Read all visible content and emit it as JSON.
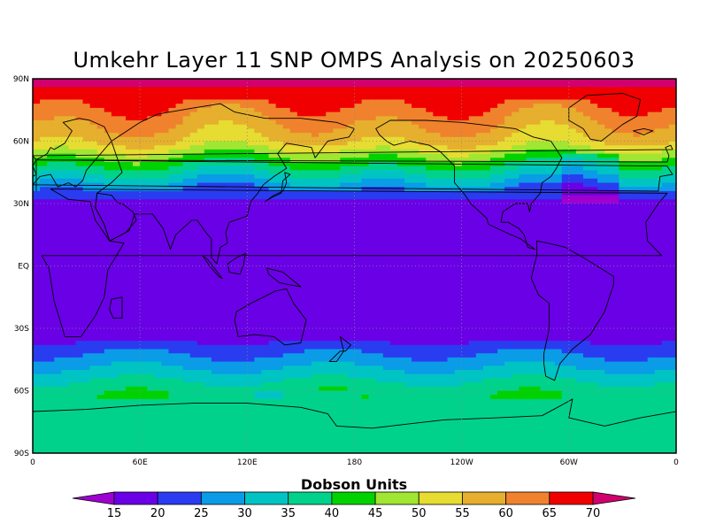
{
  "title": "Umkehr Layer 11 SNP OMPS Analysis on 20250603",
  "map": {
    "projection": "cylindrical equidistant",
    "lat_labels": [
      "90N",
      "60N",
      "30N",
      "EQ",
      "30S",
      "60S",
      "90S"
    ],
    "lat_values": [
      90,
      60,
      30,
      0,
      -30,
      -60,
      -90
    ],
    "lon_labels": [
      "0",
      "60E",
      "120E",
      "180",
      "120W",
      "60W",
      "0"
    ],
    "lon_values": [
      0,
      60,
      120,
      180,
      240,
      300,
      360
    ],
    "gridlines": "dotted",
    "coastlines": true
  },
  "colorbar": {
    "title": "Dobson Units",
    "ticks": [
      "15",
      "20",
      "25",
      "30",
      "35",
      "40",
      "45",
      "50",
      "55",
      "60",
      "65",
      "70"
    ],
    "colors": [
      "#9d00d0",
      "#6a00e6",
      "#2a3cf0",
      "#0a9ce6",
      "#00c4c4",
      "#00d28c",
      "#00d200",
      "#a0e632",
      "#e6dc32",
      "#e6af2d",
      "#f0822d",
      "#f00000",
      "#d2006e"
    ],
    "extends": "both"
  }
}
